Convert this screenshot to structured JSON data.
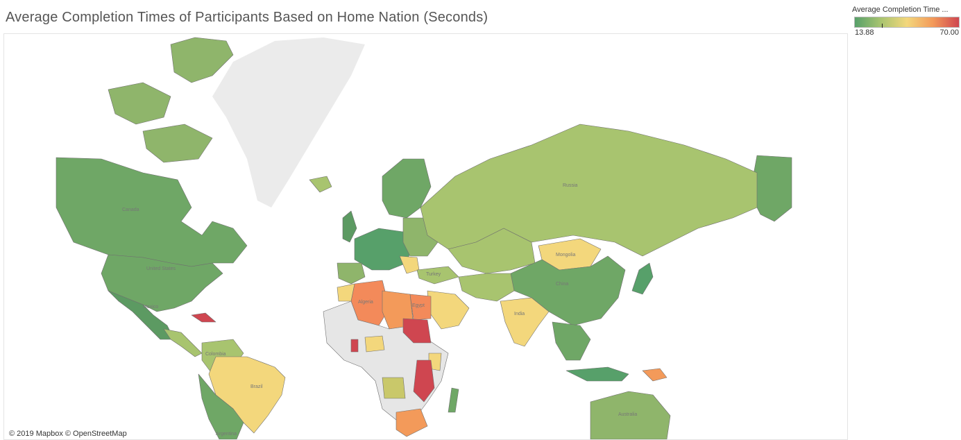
{
  "title": "Average Completion Times of Participants Based on Home Nation (Seconds)",
  "legend": {
    "title": "Average Completion Time ...",
    "min_label": "13.88",
    "max_label": "70.00",
    "min_value": 13.88,
    "max_value": 70.0,
    "marker_value": 28.5,
    "colors": [
      "#57a06a",
      "#a8c46f",
      "#f3d77c",
      "#f39a5a",
      "#cf4650"
    ]
  },
  "attribution": "© 2019 Mapbox © OpenStreetMap",
  "map_labels": {
    "canada": "Canada",
    "united_states": "United States",
    "russia": "Russia",
    "china": "China",
    "india": "India",
    "brazil": "Brazil",
    "australia": "Australia",
    "algeria": "Algeria",
    "egypt": "Egypt",
    "turkey": "Turkey",
    "mexico": "Mexico",
    "colombia": "Colombia",
    "argentina": "Argentina",
    "mongolia": "Mongolia"
  },
  "colors": {
    "no_data": "#e6e6e6",
    "greenland": "#ebebeb",
    "border": "#6f6f6f"
  }
}
